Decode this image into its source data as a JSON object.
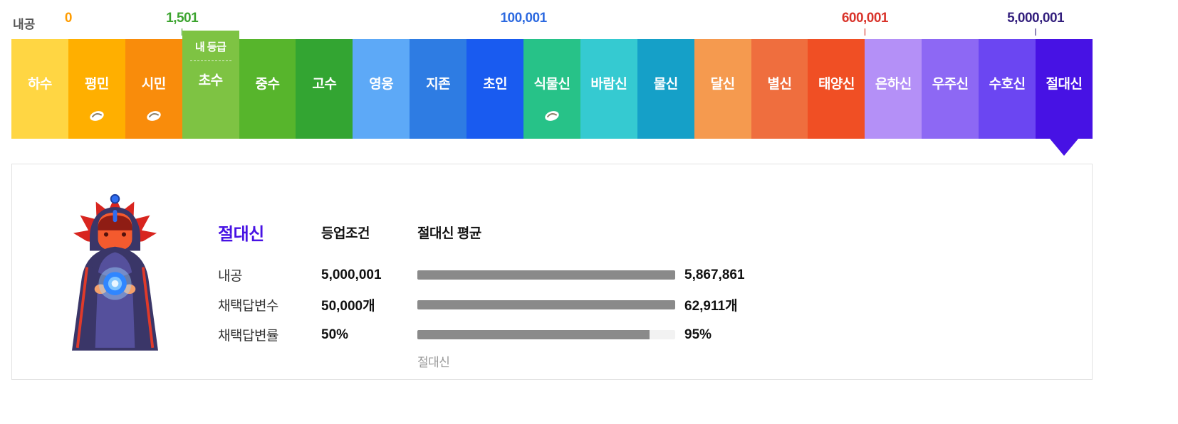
{
  "scale": {
    "axis_label": "내공",
    "my_grade_badge": "내 등급",
    "thresholds": [
      {
        "value": "0",
        "color": "#ff9c00",
        "boundary_index": 1,
        "tick": false
      },
      {
        "value": "1,501",
        "color": "#3ca42f",
        "boundary_index": 3,
        "tick": true
      },
      {
        "value": "100,001",
        "color": "#2d6ae0",
        "boundary_index": 9,
        "tick": false
      },
      {
        "value": "600,001",
        "color": "#d9342b",
        "boundary_index": 15,
        "tick": true
      },
      {
        "value": "5,000,001",
        "color": "#331f7d",
        "boundary_index": 18,
        "tick": true
      }
    ],
    "ranks": [
      {
        "label": "하수",
        "color": "#ffd643"
      },
      {
        "label": "평민",
        "color": "#ffaf00",
        "bean": true
      },
      {
        "label": "시민",
        "color": "#f98c0b",
        "bean": true
      },
      {
        "label": "초수",
        "color": "#7ec343",
        "current": true
      },
      {
        "label": "중수",
        "color": "#57b52c"
      },
      {
        "label": "고수",
        "color": "#33a532"
      },
      {
        "label": "영웅",
        "color": "#5da9f7"
      },
      {
        "label": "지존",
        "color": "#2e7ce3"
      },
      {
        "label": "초인",
        "color": "#195bf0"
      },
      {
        "label": "식물신",
        "color": "#27c288",
        "bean": true
      },
      {
        "label": "바람신",
        "color": "#35cad1"
      },
      {
        "label": "물신",
        "color": "#15a0c8"
      },
      {
        "label": "달신",
        "color": "#f59a4f"
      },
      {
        "label": "별신",
        "color": "#ef6e3e"
      },
      {
        "label": "태양신",
        "color": "#f04f24"
      },
      {
        "label": "은하신",
        "color": "#b490f7"
      },
      {
        "label": "우주신",
        "color": "#8d68f4"
      },
      {
        "label": "수호신",
        "color": "#6b46f2"
      },
      {
        "label": "절대신",
        "color": "#4712e4",
        "selected": true
      }
    ],
    "icons": {
      "bean": "bean-icon",
      "selected_arrow": "selected-rank-arrow"
    }
  },
  "detail": {
    "rank_title": "절대신",
    "title_color": "#4712e4",
    "col_condition": "등업조건",
    "col_average": "절대신 평균",
    "bar_track_color": "#f2f2f2",
    "bar_fill_color": "#8a8a8a",
    "rows": [
      {
        "label": "내공",
        "condition": "5,000,001",
        "avg_value": "5,867,861",
        "bar_percent": 100
      },
      {
        "label": "채택답변수",
        "condition": "50,000개",
        "avg_value": "62,911개",
        "bar_percent": 100
      },
      {
        "label": "채택답변률",
        "condition": "50%",
        "avg_value": "95%",
        "bar_percent": 90
      }
    ],
    "bar_caption": "절대신"
  }
}
